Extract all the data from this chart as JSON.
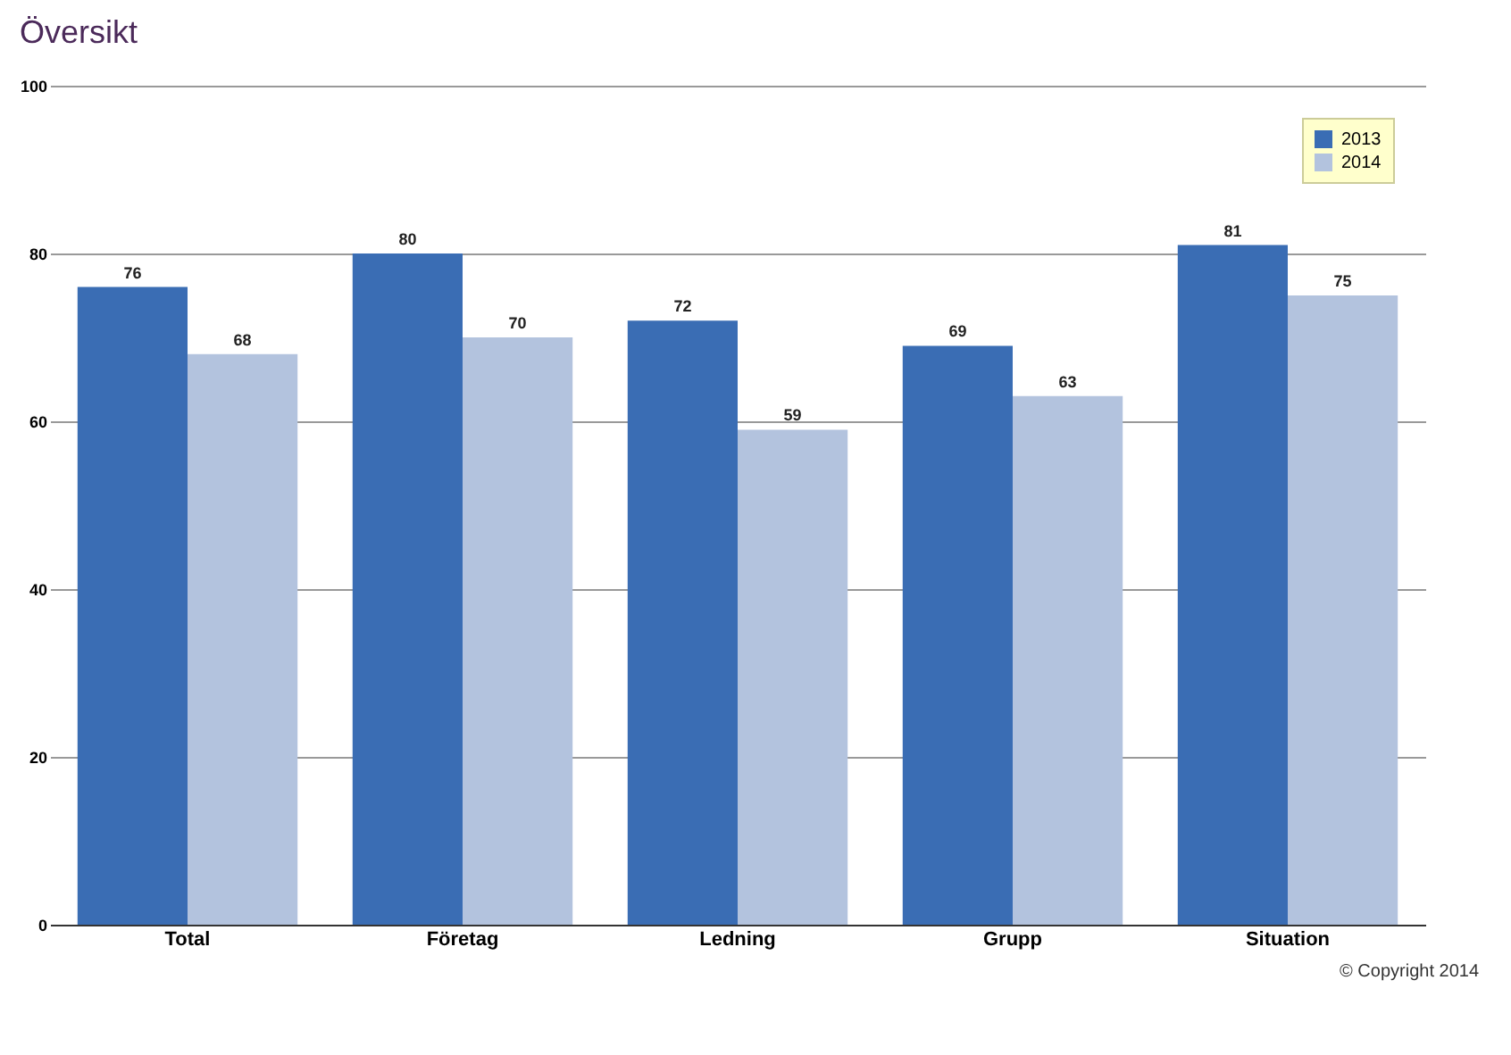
{
  "chart_data": {
    "type": "bar",
    "title": "Översikt",
    "categories": [
      "Total",
      "Företag",
      "Ledning",
      "Grupp",
      "Situation"
    ],
    "series": [
      {
        "name": "2013",
        "color": "#3a6db4",
        "values": [
          76,
          80,
          72,
          69,
          81
        ]
      },
      {
        "name": "2014",
        "color": "#b3c3de",
        "values": [
          68,
          70,
          59,
          63,
          75
        ]
      }
    ],
    "ylim": [
      0,
      100
    ],
    "yticks": [
      0,
      20,
      40,
      60,
      80,
      100
    ],
    "grid": "y",
    "legend": "top right",
    "data_labels": true,
    "annotations": [
      "© Copyright 2014"
    ]
  }
}
